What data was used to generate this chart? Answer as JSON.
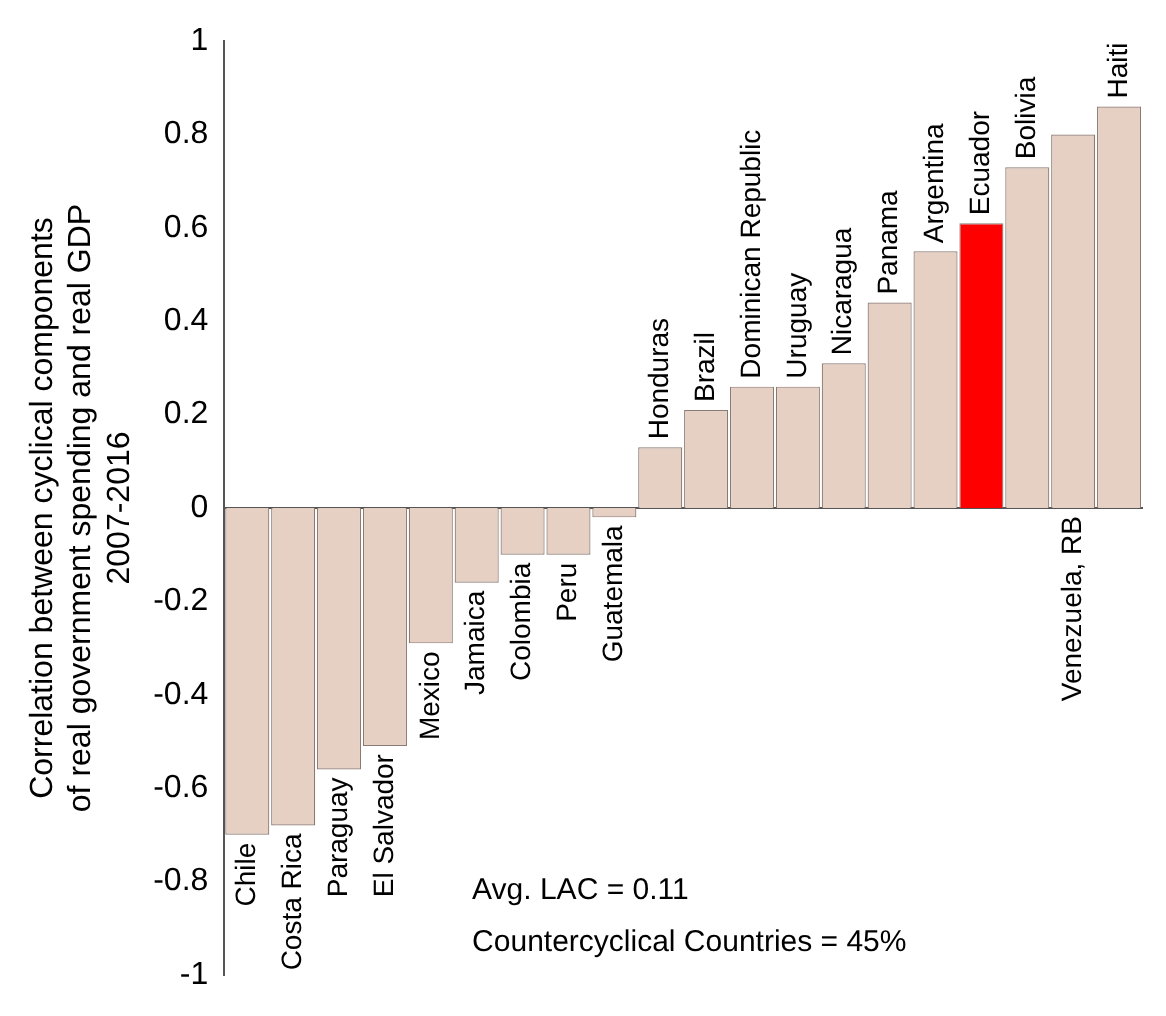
{
  "chart_data": {
    "type": "bar",
    "ylabel": "Correlation between cyclical components of real government spending and real GDP 2007-2016",
    "categories": [
      "Chile",
      "Costa Rica",
      "Paraguay",
      "El Salvador",
      "Mexico",
      "Jamaica",
      "Colombia",
      "Peru",
      "Guatemala",
      "Honduras",
      "Brazil",
      "Dominican Republic",
      "Uruguay",
      "Nicaragua",
      "Panama",
      "Argentina",
      "Ecuador",
      "Bolivia",
      "Venezuela, RB",
      "Haiti"
    ],
    "values": [
      -0.7,
      -0.68,
      -0.56,
      -0.51,
      -0.29,
      -0.16,
      -0.1,
      -0.1,
      -0.02,
      0.13,
      0.21,
      0.26,
      0.26,
      0.31,
      0.44,
      0.55,
      0.61,
      0.73,
      0.8,
      0.86
    ],
    "colors": [
      "#e6cfc3",
      "#e6cfc3",
      "#e6cfc3",
      "#e6cfc3",
      "#e6cfc3",
      "#e6cfc3",
      "#e6cfc3",
      "#e6cfc3",
      "#e6cfc3",
      "#e6cfc3",
      "#e6cfc3",
      "#e6cfc3",
      "#e6cfc3",
      "#e6cfc3",
      "#e6cfc3",
      "#e6cfc3",
      "#ff0000",
      "#e6cfc3",
      "#e6cfc3",
      "#e6cfc3"
    ],
    "ylim": [
      -1,
      1
    ],
    "yticks": [
      -1,
      -0.8,
      -0.6,
      -0.4,
      -0.2,
      0,
      0.2,
      0.4,
      0.6,
      0.8,
      1
    ],
    "grid": false,
    "legend": false,
    "annotations": [
      "Avg. LAC = 0.11",
      "Countercyclical Countries = 45%"
    ]
  }
}
